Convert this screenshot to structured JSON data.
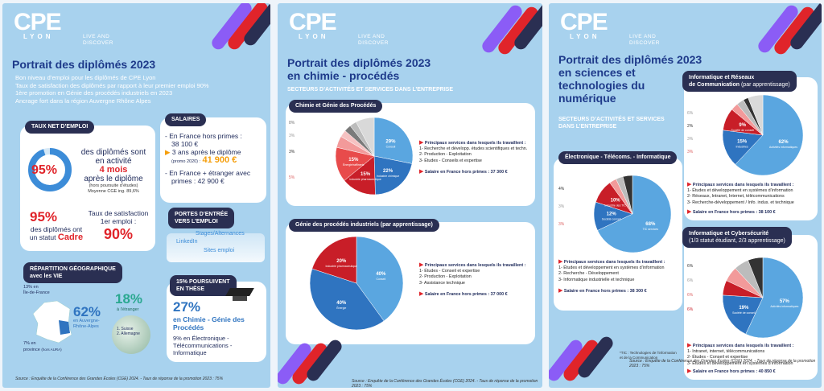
{
  "brand": {
    "logo": "CPE",
    "logo_sub": "LYON",
    "tagline1": "LIVE AND",
    "tagline2": "DISCOVER"
  },
  "colors": {
    "navy": "#2a2f52",
    "title": "#1e3a8a",
    "red": "#e0242a",
    "blue": "#3c8cd8",
    "panel": "#a8d2ee",
    "orange": "#f59e0b"
  },
  "panel1": {
    "title": "Portrait des diplômés 2023",
    "bullets": [
      "Bon niveau d’emploi pour les diplômés de CPE Lyon",
      "Taux de satisfaction des diplômés par rapport à leur premier emploi 90%",
      "1ère promotion en Génie des procédés industriels en 2023",
      "Ancrage fort dans la région Auvergne Rhône Alpes"
    ],
    "emploi": {
      "pill": "TAUX NET D’EMPLOI",
      "pct": "95%",
      "line1": "des diplômés sont",
      "line2": "en activité",
      "months": "4 mois",
      "line3": "après le diplôme",
      "note": "(hors poursuite d’études)",
      "note2": "Moyenne CGE ing. 89,6%",
      "ring_value": 0.95,
      "cadre_pct": "95%",
      "cadre_l1": "des diplômés ont",
      "cadre_l2": "un statut",
      "cadre_word": "Cadre",
      "sat_l1": "Taux de satisfaction",
      "sat_l2": "1er emploi :",
      "sat_pct": "90%"
    },
    "salaires": {
      "pill": "SALAIRES",
      "l1": "En France hors primes :",
      "v1": "38 100 €",
      "l2": "3 ans après le diplôme",
      "l2b": "(promo 2020) :",
      "v2": "41 900 €",
      "l3": "En France + étranger avec",
      "l4": "primes : 42 900 €"
    },
    "portes": {
      "pill1": "PORTES D’ENTRÉE",
      "pill2": "VERS L’EMPLOI",
      "items": [
        "Stages/Alternances",
        "LinkedIn",
        "Sites emploi"
      ]
    },
    "geo": {
      "pill1": "RÉPARTITION GÉOGRAPHIQUE",
      "pill2": "avec les VIE",
      "idf_pct": "13% en",
      "idf": "Île-de-France",
      "ara_pct": "62%",
      "ara": "en Auvergne-Rhône-Alpes",
      "prov": "7% en",
      "prov2": "province",
      "prov_note": "(hors AURA)",
      "etr_pct": "18%",
      "etr": "à l’étranger",
      "etr_sub": "1. Suisse",
      "etr_sub2": "2. Allemagne"
    },
    "poursuite": {
      "pill1": "15% POURSUIVENT",
      "pill2": "EN THÈSE",
      "pct": "27%",
      "l1": "en Chimie - Génie des",
      "l2": "Procédés",
      "l3": "9% en Électronique -",
      "l4": "Télécommunications -",
      "l5": "Informatique"
    },
    "source": "Source : Enquête de la Conférence des Grandes Écoles (CGE) 2024. - Taux de réponse de la promotion 2023 : 75%"
  },
  "panel2": {
    "title1": "Portrait des diplômés 2023",
    "title2": "en chimie - procédés",
    "sub": "SECTEURS D’ACTIVITÉS ET SERVICES DANS L’ENTREPRISE",
    "chart1": {
      "pill": "Chimie et Génie des Procédés",
      "svc_head": "Principaux services dans lesquels ils travaillent :",
      "svc": [
        "1- Recherche et développ. études scientifiques et techn.",
        "2- Production - Exploitation",
        "3- Études - Conseils et expertise"
      ],
      "salary": "Salaire en France hors primes : 37 300 €"
    },
    "chart2": {
      "pill": "Génie des procédés industriels (par apprentissage)",
      "svc_head": "Principaux services dans lesquels ils travaillent :",
      "svc": [
        "1- Études - Conseil et expertise",
        "2- Production - Exploitation",
        "3- Assistance technique"
      ],
      "salary": "Salaire en France hors primes : 37 000 €"
    },
    "source": "Source : Enquête de la Conférence des Grandes Écoles (CGE) 2024. - Taux de réponse de la promotion 2023 : 75%"
  },
  "panel3": {
    "title1": "Portrait des diplômés 2023",
    "title2": "en sciences et",
    "title3": "technologies du",
    "title4": "numérique",
    "sub1": "SECTEURS D’ACTIVITÉS ET SERVICES",
    "sub2": "DANS L’ENTREPRISE",
    "chart1": {
      "pill": "Électronique - Télécoms. - Informatique",
      "svc_head": "Principaux services dans lesquels ils travaillent :",
      "svc": [
        "1- Études et développement en systèmes d’information",
        "2- Recherche - Développement",
        "3- Informatique industrielle et technique"
      ],
      "salary": "Salaire en France hors primes : 38 300 €"
    },
    "chart2": {
      "pill1": "Informatique et Réseaux",
      "pill2": "de Communication",
      "pill2b": "(par apprentissage)",
      "svc_head": "Principaux services dans lesquels ils travaillent :",
      "svc": [
        "1- Études et développement en systèmes d’information",
        "2- Réseaux, Intranet, Internet, télécommunications",
        "3- Recherche-développement / Info. indus. et technique"
      ],
      "salary": "Salaire en France hors primes : 38 100 €"
    },
    "chart3": {
      "pill1": "Informatique et Cybersécurité",
      "pill2": "(1/3 statut étudiant, 2/3 apprentissage)",
      "svc_head": "Principaux services dans lesquels ils travaillent :",
      "svc": [
        "1- Intranet, internet, télécommunications",
        "2- Études - Conseil et expertise",
        "3- Études et développement en systèmes d’information"
      ],
      "salary": "Salaire en France hors primes : 40 850 €"
    },
    "note1": "*TIC : Technologies de l’information",
    "note2": "et de la Communication",
    "source": "Source : Enquête de la Conférence des Grandes Écoles (CGE) 2024. - Taux de réponse de la promotion 2023 : 75%"
  },
  "chart_data": [
    {
      "type": "pie",
      "title": "Chimie et Génie des Procédés",
      "slices": [
        {
          "label": "29%",
          "value": 29,
          "color": "#5aa6e0",
          "desc": "Conseil"
        },
        {
          "label": "22%",
          "value": 22,
          "color": "#2f74c0",
          "desc": "Industrie chimique"
        },
        {
          "label": "15%",
          "value": 15,
          "color": "#c81e28",
          "desc": "Industrie pharmaceutique"
        },
        {
          "label": "15%",
          "value": 15,
          "color": "#e84b4b",
          "desc": "Énergie/raffinerie"
        },
        {
          "label": "5%",
          "value": 5,
          "color": "#f29a9a",
          "desc": ""
        },
        {
          "label": "3%",
          "value": 3,
          "color": "#f6c2c2",
          "desc": ""
        },
        {
          "label": "3%",
          "value": 3,
          "color": "#7a7a7a",
          "desc": "Fabrication de produits en caoutchouc"
        },
        {
          "label": "3%",
          "value": 3,
          "color": "#bcbcbc",
          "desc": ""
        },
        {
          "label": "8%",
          "value": 8,
          "color": "#d9d9d9",
          "desc": "Autres"
        }
      ]
    },
    {
      "type": "pie",
      "title": "Génie des procédés industriels (par apprentissage)",
      "slices": [
        {
          "label": "40%",
          "value": 40,
          "color": "#5aa6e0",
          "desc": "Conseil"
        },
        {
          "label": "40%",
          "value": 40,
          "color": "#2f74c0",
          "desc": "Énergie"
        },
        {
          "label": "20%",
          "value": 20,
          "color": "#c81e28",
          "desc": "Industrie pharmaceutique"
        }
      ]
    },
    {
      "type": "pie",
      "title": "Électronique - Télécoms. - Informatique",
      "slices": [
        {
          "label": "68%",
          "value": 68,
          "color": "#5aa6e0",
          "desc": "TIC services"
        },
        {
          "label": "12%",
          "value": 12,
          "color": "#2f74c0",
          "desc": "Société conseil"
        },
        {
          "label": "10%",
          "value": 10,
          "color": "#c81e28",
          "desc": "Industrie des TIC"
        },
        {
          "label": "3%",
          "value": 3,
          "color": "#f29a9a",
          "desc": ""
        },
        {
          "label": "3%",
          "value": 3,
          "color": "#bcbcbc",
          "desc": ""
        },
        {
          "label": "4%",
          "value": 4,
          "color": "#333",
          "desc": "Autres secteurs"
        }
      ]
    },
    {
      "type": "pie",
      "title": "Informatique et Réseaux de Communication",
      "slices": [
        {
          "label": "62%",
          "value": 62,
          "color": "#5aa6e0",
          "desc": "Activités informatiques"
        },
        {
          "label": "15%",
          "value": 15,
          "color": "#2f74c0",
          "desc": "Industries"
        },
        {
          "label": "9%",
          "value": 9,
          "color": "#c81e28",
          "desc": "Société de conseil"
        },
        {
          "label": "3%",
          "value": 3,
          "color": "#f29a9a",
          "desc": ""
        },
        {
          "label": "3%",
          "value": 3,
          "color": "#bcbcbc",
          "desc": ""
        },
        {
          "label": "2%",
          "value": 2,
          "color": "#333",
          "desc": ""
        },
        {
          "label": "6%",
          "value": 6,
          "color": "#d9d9d9",
          "desc": "Autres"
        }
      ]
    },
    {
      "type": "pie",
      "title": "Informatique et Cybersécurité",
      "slices": [
        {
          "label": "57%",
          "value": 57,
          "color": "#5aa6e0",
          "desc": "Activités informatiques"
        },
        {
          "label": "19%",
          "value": 19,
          "color": "#2f74c0",
          "desc": "Société de conseil"
        },
        {
          "label": "6%",
          "value": 6,
          "color": "#c81e28",
          "desc": "Industrie des TIC"
        },
        {
          "label": "6%",
          "value": 6,
          "color": "#f29a9a",
          "desc": ""
        },
        {
          "label": "6%",
          "value": 6,
          "color": "#bcbcbc",
          "desc": ""
        },
        {
          "label": "6%",
          "value": 6,
          "color": "#333",
          "desc": ""
        }
      ]
    }
  ]
}
